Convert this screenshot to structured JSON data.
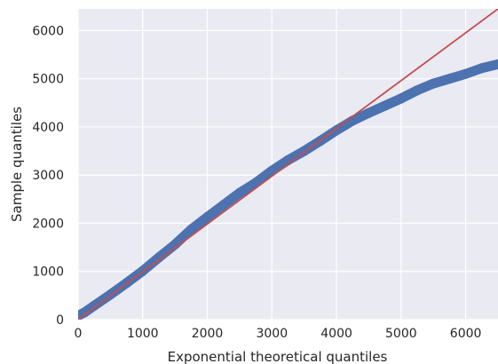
{
  "chart_data": {
    "type": "scatter",
    "title": "",
    "xlabel": "Exponential theoretical quantiles",
    "ylabel": "Sample quantiles",
    "xlim": [
      0,
      6500
    ],
    "ylim": [
      0,
      6450
    ],
    "x_ticks": [
      0,
      1000,
      2000,
      3000,
      4000,
      5000,
      6000
    ],
    "y_ticks": [
      0,
      1000,
      2000,
      3000,
      4000,
      5000,
      6000
    ],
    "grid": true,
    "style": {
      "background": "#EAEAF2",
      "grid_color": "#FFFFFF",
      "point_color": "#4C72B0",
      "line_color": "#C44E52"
    },
    "series": [
      {
        "kind": "points",
        "points": [
          [
            0,
            80
          ],
          [
            100,
            150
          ],
          [
            250,
            290
          ],
          [
            500,
            520
          ],
          [
            750,
            760
          ],
          [
            1000,
            1010
          ],
          [
            1250,
            1290
          ],
          [
            1500,
            1560
          ],
          [
            1750,
            1870
          ],
          [
            2000,
            2130
          ],
          [
            2250,
            2380
          ],
          [
            2500,
            2630
          ],
          [
            2750,
            2840
          ],
          [
            3000,
            3090
          ],
          [
            3250,
            3310
          ],
          [
            3500,
            3500
          ],
          [
            3750,
            3710
          ],
          [
            4000,
            3930
          ],
          [
            4250,
            4130
          ],
          [
            4500,
            4290
          ],
          [
            4750,
            4440
          ],
          [
            5000,
            4590
          ],
          [
            5250,
            4760
          ],
          [
            5500,
            4900
          ],
          [
            5750,
            5000
          ],
          [
            6000,
            5100
          ],
          [
            6250,
            5220
          ],
          [
            6500,
            5300
          ]
        ]
      },
      {
        "kind": "reference_line",
        "points": [
          [
            0,
            0
          ],
          [
            6500,
            6450
          ]
        ]
      }
    ]
  }
}
